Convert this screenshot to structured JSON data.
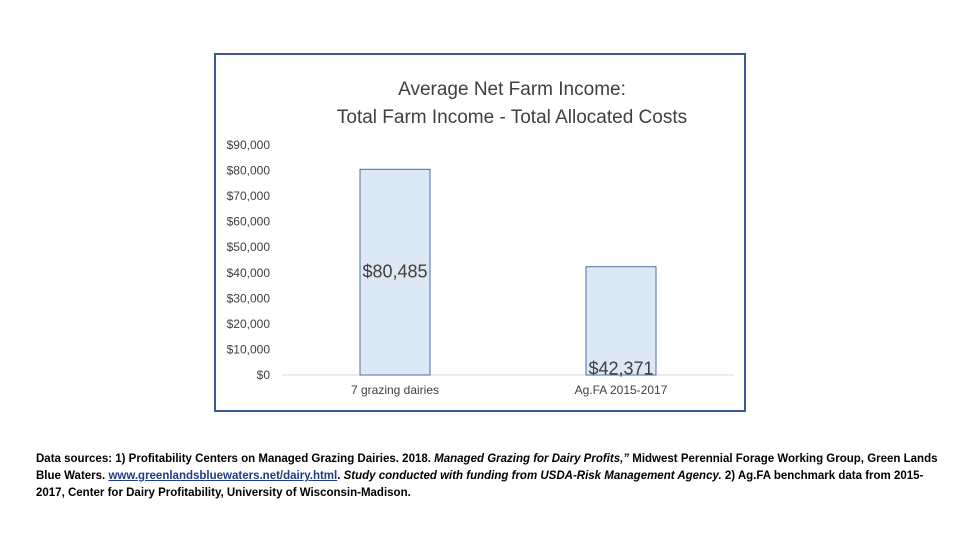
{
  "chart_data": {
    "type": "bar",
    "title": [
      "Average Net Farm Income:",
      "Total Farm Income - Total Allocated Costs"
    ],
    "categories": [
      "7 grazing dairies",
      "Ag.FA 2015-2017"
    ],
    "values": [
      80485,
      42371
    ],
    "data_labels": [
      "$80,485",
      "$42,371"
    ],
    "ylim": [
      0,
      90000
    ],
    "y_ticks": [
      0,
      10000,
      20000,
      30000,
      40000,
      50000,
      60000,
      70000,
      80000,
      90000
    ],
    "y_tick_labels": [
      "$0",
      "$10,000",
      "$20,000",
      "$30,000",
      "$40,000",
      "$50,000",
      "$60,000",
      "$70,000",
      "$80,000",
      "$90,000"
    ],
    "xlabel": "",
    "ylabel": "",
    "grid": false,
    "colors": {
      "bar_fill": "#dde8f5",
      "bar_stroke": "#4a6fa5",
      "frame": "#3b5a9b",
      "axis": "#d9d9d9"
    }
  },
  "sources": {
    "part1": "Data sources: 1) Profitability Centers on Managed Grazing Dairies. 2018. ",
    "part2_italic": "Managed Grazing for Dairy Profits,”",
    "part3": " Midwest Perennial Forage Working Group, Green Lands Blue Waters. ",
    "link": "www.greenlandsbluewaters.net/dairy.html",
    "part4": ". ",
    "part5_italic": "Study conducted with funding from USDA-Risk Management Agency.",
    "part6": " 2) Ag.FA benchmark data from 2015-2017, Center for Dairy Profitability, University of Wisconsin-Madison."
  }
}
